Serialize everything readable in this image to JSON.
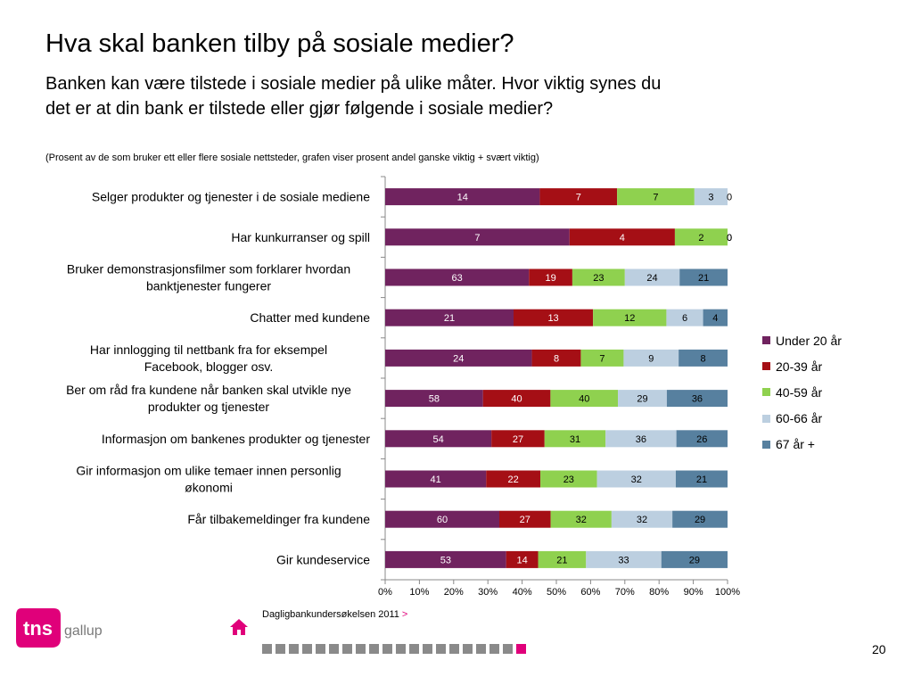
{
  "title": "Hva skal banken tilby på sosiale medier?",
  "subtitle": "Banken kan være tilstede i sosiale medier på ulike måter. Hvor viktig synes du det er at din bank er tilstede eller gjør følgende i sosiale medier?",
  "note": "(Prosent av de som bruker ett eller flere sosiale nettsteder, grafen viser prosent andel ganske viktig + svært viktig)",
  "colors": {
    "purple": "#70235f",
    "darkred": "#a50f15",
    "green": "#8fd14f",
    "lightblue": "#bccfe0",
    "steelblue": "#57809f",
    "accent": "#e0007a"
  },
  "chart_data": {
    "type": "bar",
    "orientation": "horizontal",
    "stacked": "percent",
    "categories": [
      "Selger produkter og tjenester i de sosiale mediene",
      "Har kunkurranser og spill",
      "Bruker demonstrasjonsfilmer som forklarer hvordan banktjenester fungerer",
      "Chatter med kundene",
      "Har innlogging til nettbank fra for eksempel Facebook, blogger osv.",
      "Ber om råd fra kundene når banken skal utvikle nye produkter og tjenester",
      "Informasjon om bankenes produkter og tjenester",
      "Gir informasjon om ulike temaer innen personlig økonomi",
      "Får tilbakemeldinger fra kundene",
      "Gir kundeservice"
    ],
    "series": [
      {
        "name": "Under 20 år",
        "color": "#70235f",
        "values": [
          14,
          7,
          63,
          21,
          24,
          58,
          54,
          41,
          60,
          53
        ]
      },
      {
        "name": "20-39 år",
        "color": "#a50f15",
        "values": [
          7,
          4,
          19,
          13,
          8,
          40,
          27,
          22,
          27,
          14
        ]
      },
      {
        "name": "40-59 år",
        "color": "#8fd14f",
        "values": [
          7,
          2,
          23,
          12,
          7,
          40,
          31,
          23,
          32,
          21
        ]
      },
      {
        "name": "60-66 år",
        "color": "#bccfe0",
        "values": [
          3,
          0,
          24,
          6,
          9,
          29,
          36,
          32,
          32,
          33
        ]
      },
      {
        "name": "67 år +",
        "color": "#57809f",
        "values": [
          0,
          0,
          21,
          4,
          8,
          36,
          26,
          21,
          29,
          29
        ]
      }
    ],
    "xticks": [
      "0%",
      "10%",
      "20%",
      "30%",
      "40%",
      "50%",
      "60%",
      "70%",
      "80%",
      "90%",
      "100%"
    ],
    "xlim": [
      0,
      100
    ],
    "grid": false,
    "legend_position": "right"
  },
  "source": "Dagligbankundersøkelsen 2011",
  "source_chevron": ">",
  "logo": {
    "text1": "tns",
    "text2": "gallup"
  },
  "page_number": "20",
  "pager_count": 20,
  "pager_active_index": 19
}
